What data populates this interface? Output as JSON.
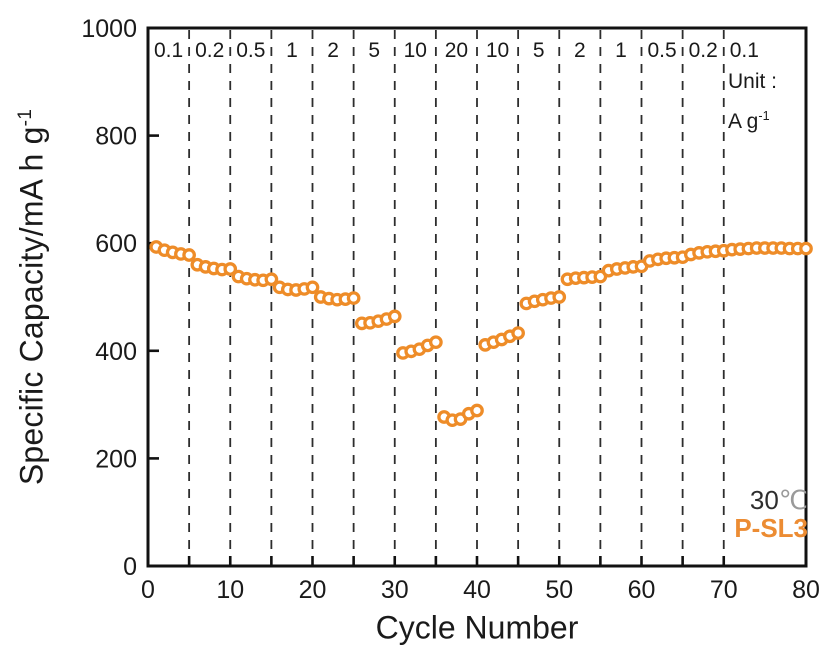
{
  "axes": {
    "x_title": "Cycle Number",
    "y_title_base": "Specific Capacity/mA h g",
    "y_title_sup": "-1"
  },
  "annotations": {
    "unit_line1": "Unit :",
    "unit_line2_base": "A g",
    "unit_line2_sup": "-1",
    "temperature_value": "30",
    "temperature_symbol": "℃",
    "sample": "P-SL3",
    "sample_color": "#EC8C33"
  },
  "chart_data": {
    "type": "scatter",
    "title": "",
    "xlabel": "Cycle Number",
    "ylabel": "Specific Capacity/mA h g^-1",
    "rate_unit": "A g^-1",
    "temperature": "30℃",
    "series_name": "P-SL3",
    "xlim": [
      0,
      80
    ],
    "ylim": [
      0,
      1000
    ],
    "grid": "vertical-dashed-dividers",
    "x_ticks": [
      0,
      5,
      10,
      15,
      20,
      25,
      30,
      35,
      40,
      45,
      50,
      55,
      60,
      65,
      70,
      80
    ],
    "x_tick_labels": [
      "0",
      "10",
      "20",
      "30",
      "40",
      "50",
      "60",
      "70",
      "80"
    ],
    "x_tick_label_values": [
      0,
      10,
      20,
      30,
      40,
      50,
      60,
      70,
      80
    ],
    "y_ticks": [
      0,
      200,
      400,
      600,
      800,
      1000
    ],
    "y_tick_labels": [
      "0",
      "200",
      "400",
      "600",
      "800",
      "1000"
    ],
    "divider_cycles": [
      5,
      10,
      15,
      20,
      25,
      30,
      35,
      40,
      45,
      50,
      55,
      60,
      65,
      70
    ],
    "marker_color": "#EE8C28",
    "marker_fill": "#ffffff",
    "axis_color": "#111111",
    "divider_color": "#2d2d2d",
    "text_color": "#1a1a1a",
    "segments": [
      {
        "rate": "0.1",
        "start_cycle": 1,
        "values": [
          593,
          587,
          583,
          580,
          578
        ]
      },
      {
        "rate": "0.2",
        "start_cycle": 6,
        "values": [
          560,
          556,
          553,
          551,
          552
        ]
      },
      {
        "rate": "0.5",
        "start_cycle": 11,
        "values": [
          538,
          534,
          532,
          531,
          533
        ]
      },
      {
        "rate": "1",
        "start_cycle": 16,
        "values": [
          518,
          514,
          513,
          515,
          518
        ]
      },
      {
        "rate": "2",
        "start_cycle": 21,
        "values": [
          500,
          497,
          495,
          496,
          498
        ]
      },
      {
        "rate": "5",
        "start_cycle": 26,
        "values": [
          451,
          452,
          455,
          459,
          464
        ]
      },
      {
        "rate": "10",
        "start_cycle": 31,
        "values": [
          396,
          399,
          403,
          410,
          416
        ]
      },
      {
        "rate": "20",
        "start_cycle": 36,
        "values": [
          277,
          271,
          273,
          283,
          289
        ]
      },
      {
        "rate": "10",
        "start_cycle": 41,
        "values": [
          411,
          416,
          421,
          427,
          433
        ]
      },
      {
        "rate": "5",
        "start_cycle": 46,
        "values": [
          488,
          492,
          495,
          498,
          500
        ]
      },
      {
        "rate": "2",
        "start_cycle": 51,
        "values": [
          533,
          535,
          536,
          537,
          538
        ]
      },
      {
        "rate": "1",
        "start_cycle": 56,
        "values": [
          549,
          552,
          554,
          556,
          557
        ]
      },
      {
        "rate": "0.5",
        "start_cycle": 61,
        "values": [
          567,
          570,
          572,
          573,
          574
        ]
      },
      {
        "rate": "0.2",
        "start_cycle": 66,
        "values": [
          579,
          582,
          584,
          585,
          586
        ]
      },
      {
        "rate": "0.1",
        "start_cycle": 71,
        "values": [
          588,
          589,
          590,
          591,
          591,
          591,
          591,
          590,
          590,
          590
        ],
        "label_cycle": 72.5
      }
    ]
  }
}
